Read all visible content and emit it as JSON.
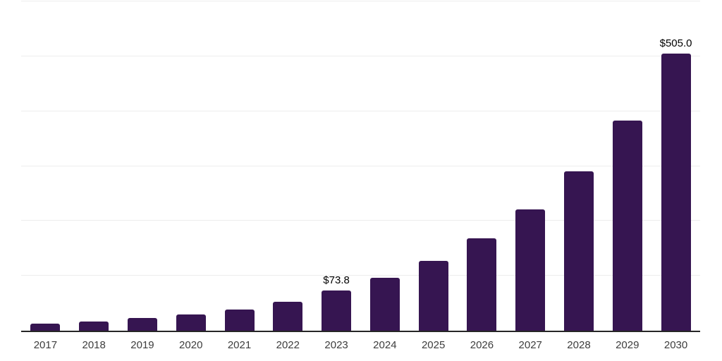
{
  "chart_data": {
    "type": "bar",
    "title": "",
    "xlabel": "",
    "ylabel": "",
    "categories": [
      "2017",
      "2018",
      "2019",
      "2020",
      "2021",
      "2022",
      "2023",
      "2024",
      "2025",
      "2026",
      "2027",
      "2028",
      "2029",
      "2030"
    ],
    "values": [
      13.0,
      17.2,
      22.6,
      29.8,
      39.2,
      53.3,
      73.8,
      96.9,
      127.6,
      167.9,
      220.9,
      290.7,
      382.5,
      505.0
    ],
    "data_labels": [
      null,
      null,
      null,
      null,
      null,
      null,
      "$73.8",
      null,
      null,
      null,
      null,
      null,
      null,
      "$505.0"
    ],
    "ylim": [
      0,
      600
    ],
    "gridline_step": 100,
    "grid": "horizontal-only",
    "legend": "none",
    "y_axis_tick_labels_visible": false,
    "colors": {
      "bar": "#361551",
      "gridline": "#ededed",
      "axis_line": "#262626",
      "value_label": "#000000",
      "tick_label": "#3d3d3d",
      "background": "#ffffff"
    }
  }
}
